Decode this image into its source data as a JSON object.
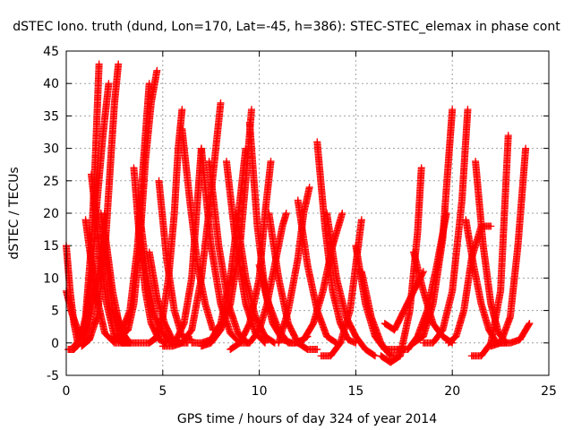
{
  "chart_data": {
    "type": "scatter",
    "title": "dSTEC Iono. truth (dund, Lon=170, Lat=-45, h=386): STEC-STEC_elemax in phase cont",
    "xlabel": "GPS time / hours of day 324 of year 2014",
    "ylabel": "dSTEC  / TECUs",
    "xlim": [
      0,
      25
    ],
    "ylim": [
      -5,
      45
    ],
    "x_ticks": [
      "0",
      "5",
      "10",
      "15",
      "20",
      "25"
    ],
    "y_ticks": [
      "-5",
      "0",
      "5",
      "10",
      "15",
      "20",
      "25",
      "30",
      "35",
      "40",
      "45"
    ],
    "grid": true,
    "marker": "+",
    "marker_color": "#ff0000",
    "series": [
      {
        "x": [
          0.0,
          0.2,
          0.4,
          0.6
        ],
        "y": [
          15,
          8,
          3,
          0
        ]
      },
      {
        "x": [
          0.0,
          0.3,
          0.6,
          0.9,
          1.2,
          1.6,
          2.0
        ],
        "y": [
          8,
          4.5,
          2,
          0.5,
          3,
          10,
          20
        ]
      },
      {
        "x": [
          0.1,
          0.4,
          0.7,
          1.0,
          1.3,
          1.5,
          1.7
        ],
        "y": [
          -1,
          -1,
          0,
          4,
          15,
          28,
          43
        ]
      },
      {
        "x": [
          0.4,
          0.7,
          1.0,
          1.3,
          1.6,
          1.9,
          2.2
        ],
        "y": [
          -0.5,
          0.5,
          3,
          10,
          22,
          32,
          40
        ]
      },
      {
        "x": [
          0.8,
          1.2,
          1.6,
          2.0,
          2.3,
          2.5,
          2.7
        ],
        "y": [
          -0.5,
          0.5,
          4,
          14,
          28,
          37,
          43
        ]
      },
      {
        "x": [
          1.0,
          1.5,
          2.0,
          2.5,
          3.0
        ],
        "y": [
          19,
          8,
          1.5,
          0,
          0
        ]
      },
      {
        "x": [
          1.3,
          1.7,
          2.1,
          2.5,
          2.9,
          3.3
        ],
        "y": [
          26,
          15,
          6,
          1,
          0,
          0
        ]
      },
      {
        "x": [
          1.8,
          2.1,
          2.4,
          2.7,
          3.0,
          3.3
        ],
        "y": [
          20,
          12,
          5,
          1,
          0,
          0
        ]
      },
      {
        "x": [
          2.0,
          2.4,
          2.8,
          3.3,
          3.8,
          4.3,
          4.8
        ],
        "y": [
          17,
          8,
          2,
          0,
          0,
          0,
          1
        ]
      },
      {
        "x": [
          2.8,
          3.2,
          3.5,
          3.8,
          4.1,
          4.4,
          4.7
        ],
        "y": [
          1,
          2,
          6,
          15,
          28,
          37,
          42
        ]
      },
      {
        "x": [
          2.5,
          2.9,
          3.3,
          3.7,
          4.0,
          4.3
        ],
        "y": [
          5,
          2,
          5,
          15,
          28,
          40
        ]
      },
      {
        "x": [
          3.5,
          3.8,
          4.1,
          4.4,
          4.8,
          5.2
        ],
        "y": [
          27,
          16,
          8,
          3,
          0.5,
          0
        ]
      },
      {
        "x": [
          3.8,
          4.2,
          4.6,
          5.0,
          5.4,
          5.7
        ],
        "y": [
          20,
          10,
          4,
          1.5,
          0,
          0
        ]
      },
      {
        "x": [
          4.3,
          4.7,
          5.1,
          5.5,
          5.9,
          6.3
        ],
        "y": [
          14,
          7,
          3,
          0.5,
          0,
          0
        ]
      },
      {
        "x": [
          4.3,
          4.7,
          5.0,
          5.3,
          5.6,
          5.8,
          6.0
        ],
        "y": [
          0,
          1,
          4,
          10,
          20,
          30,
          36
        ]
      },
      {
        "x": [
          4.8,
          5.2,
          5.6,
          6.0,
          6.5
        ],
        "y": [
          25,
          13,
          5,
          1,
          0.5
        ]
      },
      {
        "x": [
          6.0,
          6.4,
          6.8,
          7.2,
          7.6
        ],
        "y": [
          33,
          22,
          12,
          6,
          2
        ]
      },
      {
        "x": [
          5.3,
          5.7,
          6.1,
          6.5,
          6.8,
          7.0
        ],
        "y": [
          0,
          0.5,
          3,
          10,
          22,
          30
        ]
      },
      {
        "x": [
          5.0,
          5.5,
          6.0,
          6.5,
          7.0,
          7.5,
          8.0
        ],
        "y": [
          -0.5,
          -0.5,
          0,
          2,
          10,
          23,
          37
        ]
      },
      {
        "x": [
          7.0,
          7.5,
          8.0,
          8.5,
          9.0,
          9.5
        ],
        "y": [
          30,
          15,
          6,
          1.5,
          0,
          0
        ]
      },
      {
        "x": [
          7.4,
          7.9,
          8.4,
          8.9,
          9.4
        ],
        "y": [
          28,
          15,
          6,
          1.5,
          0
        ]
      },
      {
        "x": [
          6.5,
          7.0,
          7.5,
          8.0,
          8.5,
          9.0,
          9.3
        ],
        "y": [
          0,
          0,
          0.5,
          3,
          10,
          22,
          30
        ]
      },
      {
        "x": [
          7.0,
          7.5,
          8.0,
          8.5,
          9.0,
          9.3,
          9.6
        ],
        "y": [
          -0.5,
          0,
          2,
          6,
          15,
          25,
          36
        ]
      },
      {
        "x": [
          8.3,
          8.8,
          9.3,
          9.8,
          10.3
        ],
        "y": [
          28,
          15,
          6,
          1.5,
          0
        ]
      },
      {
        "x": [
          8.8,
          9.3,
          9.8,
          10.3,
          10.8
        ],
        "y": [
          20,
          10,
          4,
          1,
          0
        ]
      },
      {
        "x": [
          9.5,
          9.9,
          10.3,
          10.7,
          11.2,
          11.7
        ],
        "y": [
          34,
          18,
          8,
          3,
          0.5,
          0
        ]
      },
      {
        "x": [
          8.5,
          9.0,
          9.5,
          10.0,
          10.3,
          10.6
        ],
        "y": [
          -1,
          0,
          3,
          10,
          20,
          28
        ]
      },
      {
        "x": [
          9.5,
          10.0,
          10.4,
          10.8,
          11.2,
          11.4
        ],
        "y": [
          0,
          2,
          6,
          12,
          18,
          20
        ]
      },
      {
        "x": [
          10.0,
          10.5,
          11.0,
          11.5,
          12.0,
          12.5
        ],
        "y": [
          12,
          6,
          2,
          0,
          0,
          1
        ]
      },
      {
        "x": [
          10.5,
          11.0,
          11.5,
          12.0,
          12.5,
          13.0
        ],
        "y": [
          20,
          10,
          3,
          0,
          -1,
          -1
        ]
      },
      {
        "x": [
          11.0,
          11.5,
          12.0,
          12.3,
          12.6
        ],
        "y": [
          0,
          5,
          13,
          20,
          24
        ]
      },
      {
        "x": [
          12.0,
          12.5,
          13.0,
          13.5,
          14.0
        ],
        "y": [
          22,
          12,
          5,
          1,
          0
        ]
      },
      {
        "x": [
          11.8,
          12.3,
          12.8,
          13.3,
          13.8,
          14.3
        ],
        "y": [
          0,
          0.5,
          3,
          8,
          15,
          20
        ]
      },
      {
        "x": [
          13.0,
          13.4,
          13.8,
          14.2,
          14.6,
          15.0
        ],
        "y": [
          31,
          18,
          8,
          3,
          0.5,
          0
        ]
      },
      {
        "x": [
          13.5,
          14.0,
          14.5,
          15.0,
          15.5,
          16.0
        ],
        "y": [
          20,
          10,
          4,
          1,
          -1,
          -2
        ]
      },
      {
        "x": [
          13.2,
          13.7,
          14.2,
          14.7,
          15.0,
          15.3
        ],
        "y": [
          -2,
          -2,
          0,
          5,
          12,
          19
        ]
      },
      {
        "x": [
          15.0,
          15.5,
          16.0,
          16.5,
          17.0,
          17.5
        ],
        "y": [
          15,
          6,
          1,
          -1,
          -1,
          -1
        ]
      },
      {
        "x": [
          15.3,
          15.8,
          16.3,
          16.8,
          17.3
        ],
        "y": [
          11,
          4,
          0,
          -2,
          -2
        ]
      },
      {
        "x": [
          16.3,
          16.8,
          17.3,
          17.8,
          18.2,
          18.4
        ],
        "y": [
          -2,
          -3,
          -2,
          5,
          17,
          27
        ]
      },
      {
        "x": [
          16.5,
          17.0,
          17.5,
          18.0,
          18.5
        ],
        "y": [
          3,
          2,
          5,
          8,
          11
        ]
      },
      {
        "x": [
          17.2,
          17.7,
          18.2,
          18.7,
          19.2,
          19.7
        ],
        "y": [
          -1,
          -1,
          1,
          5,
          12,
          20
        ]
      },
      {
        "x": [
          18.0,
          18.5,
          19.0,
          19.5,
          20.0
        ],
        "y": [
          14,
          8,
          3,
          1,
          0
        ]
      },
      {
        "x": [
          18.0,
          18.5,
          19.0,
          19.5,
          19.8,
          20.0
        ],
        "y": [
          0,
          1,
          6,
          16,
          28,
          36
        ]
      },
      {
        "x": [
          18.5,
          19.0,
          19.5,
          20.0,
          20.5,
          20.8
        ],
        "y": [
          0,
          0,
          2,
          8,
          22,
          36
        ]
      },
      {
        "x": [
          19.8,
          20.2,
          20.6,
          21.0,
          21.5,
          22.0
        ],
        "y": [
          0,
          1,
          5,
          13,
          18,
          18
        ]
      },
      {
        "x": [
          20.7,
          21.1,
          21.5,
          21.9,
          22.3,
          22.7
        ],
        "y": [
          19,
          12,
          6,
          2,
          0,
          0
        ]
      },
      {
        "x": [
          21.2,
          21.6,
          22.0,
          22.4,
          22.8
        ],
        "y": [
          28,
          15,
          6,
          1.5,
          0
        ]
      },
      {
        "x": [
          21.0,
          21.5,
          22.0,
          22.5,
          22.9
        ],
        "y": [
          -2,
          -2,
          0,
          8,
          32
        ]
      },
      {
        "x": [
          22.0,
          22.5,
          23.0,
          23.4,
          23.8
        ],
        "y": [
          -0.5,
          0,
          4,
          15,
          30
        ]
      },
      {
        "x": [
          22.5,
          23.0,
          23.5,
          24.0
        ],
        "y": [
          0,
          0,
          0.5,
          3
        ]
      }
    ]
  }
}
